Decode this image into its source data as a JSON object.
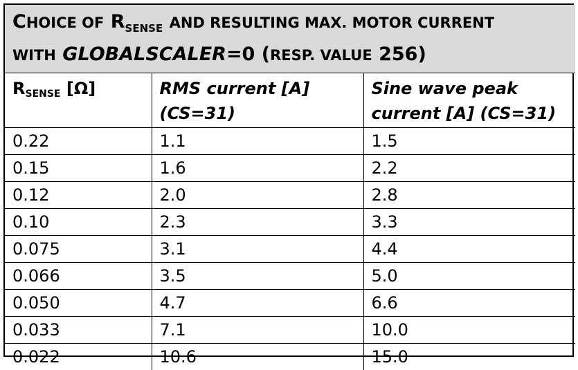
{
  "title": {
    "line1_part1": "C",
    "line1_part1_sc": "HOICE OF",
    "line1_r": "R",
    "line1_r_sub": "SENSE",
    "line1_part2_sc": "AND RESULTING MAX. MOTOR CURRENT",
    "line2_part1_sc": "WITH",
    "line2_globalscaler": "GLOBALSCALER",
    "line2_eq": "=0 (",
    "line2_resp_sc": "RESP. VALUE",
    "line2_end": "256)"
  },
  "headers": {
    "col1_r": "R",
    "col1_sub": "SENSE",
    "col1_unit": "[Ω]",
    "col2": "RMS current [A] (CS=31)",
    "col3": "Sine wave peak current [A] (CS=31)"
  },
  "rows": [
    {
      "rsense": "0.22",
      "rms": "1.1",
      "peak": "1.5"
    },
    {
      "rsense": "0.15",
      "rms": "1.6",
      "peak": "2.2"
    },
    {
      "rsense": "0.12",
      "rms": "2.0",
      "peak": "2.8"
    },
    {
      "rsense": "0.10",
      "rms": "2.3",
      "peak": "3.3"
    },
    {
      "rsense": "0.075",
      "rms": "3.1",
      "peak": "4.4"
    },
    {
      "rsense": "0.066",
      "rms": "3.5",
      "peak": "5.0"
    },
    {
      "rsense": "0.050",
      "rms": "4.7",
      "peak": "6.6"
    },
    {
      "rsense": "0.033",
      "rms": "7.1",
      "peak": "10.0"
    },
    {
      "rsense": "0.022",
      "rms": "10.6",
      "peak": "15.0"
    }
  ]
}
